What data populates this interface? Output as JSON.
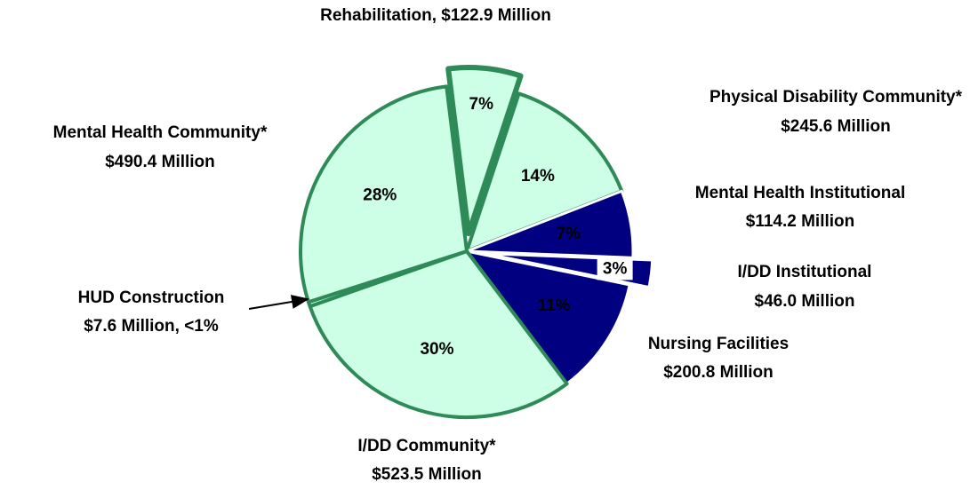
{
  "chart_data": {
    "type": "pie",
    "labels": [
      [
        "Rehabilitation, $122.9 Million"
      ],
      [
        "Physical Disability Community*",
        "$245.6 Million"
      ],
      [
        "Mental Health Institutional",
        "$114.2 Million"
      ],
      [
        "I/DD Institutional",
        "$46.0 Million"
      ],
      [
        "Nursing Facilities",
        "$200.8 Million"
      ],
      [
        "I/DD Community*",
        "$523.5 Million"
      ],
      [
        "HUD Construction",
        "$7.6 Million, <1%"
      ],
      [
        "Mental Health Community*",
        "$490.4 Million"
      ]
    ],
    "values": [
      122.9,
      245.6,
      114.2,
      46.0,
      200.8,
      523.5,
      7.6,
      490.4
    ],
    "percent_labels": [
      "7%",
      "14%",
      "7%",
      "3%",
      "11%",
      "30%",
      null,
      "28%"
    ],
    "colors": [
      "#ccffe6",
      "#ccffe6",
      "#000080",
      "#000080",
      "#000080",
      "#ccffe6",
      "#ccffe6",
      "#ccffe6"
    ]
  }
}
